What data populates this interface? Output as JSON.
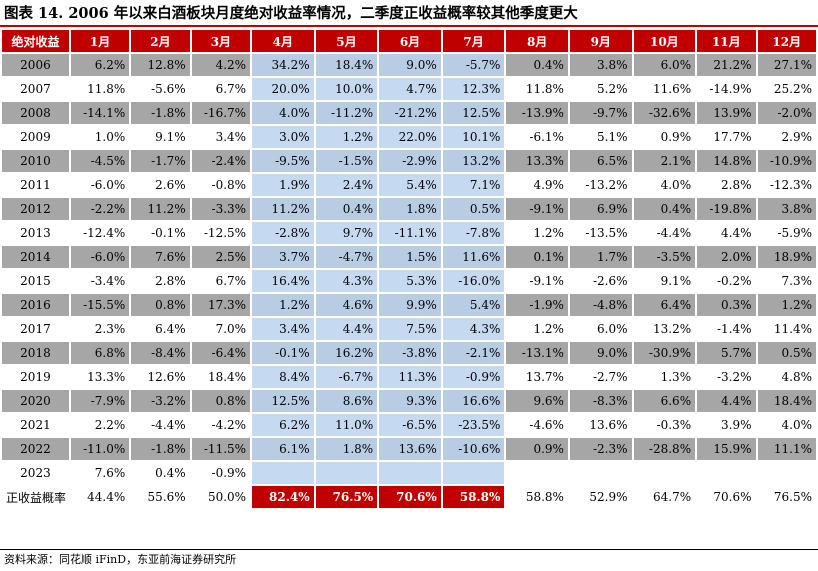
{
  "title": "图表 14. 2006 年以来白酒板块月度绝对收益率情况，二季度正收益概率较其他季度更大",
  "source": "资料来源：同花顺 iFinD，东亚前海证券研究所",
  "colors": {
    "header": "#c00000",
    "highlight": "#c5d9f1",
    "shade": "#a6a6a6"
  },
  "chart_data": {
    "type": "table",
    "corner_label": "绝对收益",
    "columns": [
      "1月",
      "2月",
      "3月",
      "4月",
      "5月",
      "6月",
      "7月",
      "8月",
      "9月",
      "10月",
      "11月",
      "12月"
    ],
    "highlight_columns": [
      "4月",
      "5月",
      "6月",
      "7月"
    ],
    "rows": [
      {
        "year": "2006",
        "values": [
          "6.2%",
          "12.8%",
          "4.2%",
          "34.2%",
          "18.4%",
          "9.0%",
          "-5.7%",
          "0.4%",
          "3.8%",
          "6.0%",
          "21.2%",
          "27.1%"
        ]
      },
      {
        "year": "2007",
        "values": [
          "11.8%",
          "-5.6%",
          "6.7%",
          "20.0%",
          "10.0%",
          "4.7%",
          "12.3%",
          "11.8%",
          "5.2%",
          "11.6%",
          "-14.9%",
          "25.2%"
        ]
      },
      {
        "year": "2008",
        "values": [
          "-14.1%",
          "-1.8%",
          "-16.7%",
          "4.0%",
          "-11.2%",
          "-21.2%",
          "12.5%",
          "-13.9%",
          "-9.7%",
          "-32.6%",
          "13.9%",
          "-2.0%"
        ]
      },
      {
        "year": "2009",
        "values": [
          "1.0%",
          "9.1%",
          "3.4%",
          "3.0%",
          "1.2%",
          "22.0%",
          "10.1%",
          "-6.1%",
          "5.1%",
          "0.9%",
          "17.7%",
          "2.9%"
        ]
      },
      {
        "year": "2010",
        "values": [
          "-4.5%",
          "-1.7%",
          "-2.4%",
          "-9.5%",
          "-1.5%",
          "-2.9%",
          "13.2%",
          "13.3%",
          "6.5%",
          "2.1%",
          "14.8%",
          "-10.9%"
        ]
      },
      {
        "year": "2011",
        "values": [
          "-6.0%",
          "2.6%",
          "-0.8%",
          "1.9%",
          "2.4%",
          "5.4%",
          "7.1%",
          "4.9%",
          "-13.2%",
          "4.0%",
          "2.8%",
          "-12.3%"
        ]
      },
      {
        "year": "2012",
        "values": [
          "-2.2%",
          "11.2%",
          "-3.3%",
          "11.2%",
          "0.4%",
          "1.8%",
          "0.5%",
          "-9.1%",
          "6.9%",
          "0.4%",
          "-19.8%",
          "3.8%"
        ]
      },
      {
        "year": "2013",
        "values": [
          "-12.4%",
          "-0.1%",
          "-12.5%",
          "-2.8%",
          "9.7%",
          "-11.1%",
          "-7.8%",
          "1.2%",
          "-13.5%",
          "-4.4%",
          "4.4%",
          "-5.9%"
        ]
      },
      {
        "year": "2014",
        "values": [
          "-6.0%",
          "7.6%",
          "2.5%",
          "3.7%",
          "-4.7%",
          "1.5%",
          "11.6%",
          "0.1%",
          "1.7%",
          "-3.5%",
          "2.0%",
          "18.9%"
        ]
      },
      {
        "year": "2015",
        "values": [
          "-3.4%",
          "2.8%",
          "6.7%",
          "16.4%",
          "4.3%",
          "5.3%",
          "-16.0%",
          "-9.1%",
          "-2.6%",
          "9.1%",
          "-0.2%",
          "7.3%"
        ]
      },
      {
        "year": "2016",
        "values": [
          "-15.5%",
          "0.8%",
          "17.3%",
          "1.2%",
          "4.6%",
          "9.9%",
          "5.4%",
          "-1.9%",
          "-4.8%",
          "6.4%",
          "0.3%",
          "1.2%"
        ]
      },
      {
        "year": "2017",
        "values": [
          "2.3%",
          "6.4%",
          "7.0%",
          "3.4%",
          "4.4%",
          "7.5%",
          "4.3%",
          "1.2%",
          "6.0%",
          "13.2%",
          "-1.4%",
          "11.4%"
        ]
      },
      {
        "year": "2018",
        "values": [
          "6.8%",
          "-8.4%",
          "-6.4%",
          "-0.1%",
          "16.2%",
          "-3.8%",
          "-2.1%",
          "-13.1%",
          "9.0%",
          "-30.9%",
          "5.7%",
          "0.5%"
        ]
      },
      {
        "year": "2019",
        "values": [
          "13.3%",
          "12.6%",
          "18.4%",
          "8.4%",
          "-6.7%",
          "11.3%",
          "-0.9%",
          "13.7%",
          "-2.7%",
          "1.3%",
          "-3.2%",
          "4.8%"
        ]
      },
      {
        "year": "2020",
        "values": [
          "-7.9%",
          "-3.2%",
          "0.8%",
          "12.5%",
          "8.6%",
          "9.3%",
          "16.6%",
          "9.6%",
          "-8.3%",
          "6.6%",
          "4.4%",
          "18.4%"
        ]
      },
      {
        "year": "2021",
        "values": [
          "2.2%",
          "-4.4%",
          "-4.2%",
          "6.2%",
          "11.0%",
          "-6.5%",
          "-23.5%",
          "-4.6%",
          "13.6%",
          "-0.3%",
          "3.9%",
          "4.0%"
        ]
      },
      {
        "year": "2022",
        "values": [
          "-11.0%",
          "-1.8%",
          "-11.5%",
          "6.1%",
          "1.8%",
          "13.6%",
          "-10.6%",
          "0.9%",
          "-2.3%",
          "-28.8%",
          "15.9%",
          "11.1%"
        ]
      },
      {
        "year": "2023",
        "values": [
          "7.6%",
          "0.4%",
          "-0.9%",
          "",
          "",
          "",
          "",
          "",
          "",
          "",
          "",
          ""
        ]
      }
    ],
    "summary": {
      "label": "正收益概率",
      "values": [
        "44.4%",
        "55.6%",
        "50.0%",
        "82.4%",
        "76.5%",
        "70.6%",
        "58.8%",
        "58.8%",
        "52.9%",
        "64.7%",
        "70.6%",
        "76.5%"
      ]
    }
  }
}
